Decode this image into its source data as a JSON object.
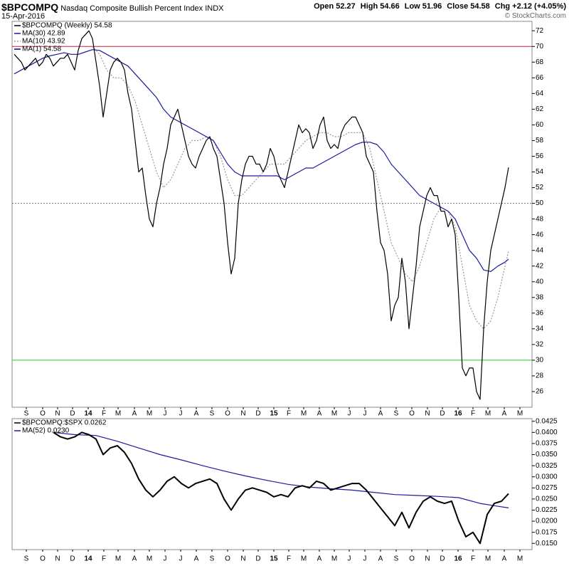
{
  "chart_data": {
    "type": "line",
    "symbol": "$BPCOMPQ",
    "title": "Nasdaq Composite Bullish Percent Index",
    "exchange": "INDX",
    "date": "15-Apr-2016",
    "quote": [
      {
        "label": "Open",
        "value": 52.27
      },
      {
        "label": "High",
        "value": 54.66
      },
      {
        "label": "Low",
        "value": 51.96
      },
      {
        "label": "Close",
        "value": 54.58
      },
      {
        "label": "Chg",
        "value": "+2.12 (+4.05%)"
      }
    ],
    "watermark": "© StockCharts.com",
    "xlim": [
      -0.6,
      145.6
    ],
    "xticks": [
      {
        "value": 3.4,
        "label": "S"
      },
      {
        "value": 8,
        "label": "O"
      },
      {
        "value": 12.2,
        "label": "N"
      },
      {
        "value": 16.4,
        "label": "D"
      },
      {
        "value": 20.8,
        "label": "14",
        "bold": true
      },
      {
        "value": 25.2,
        "label": "F"
      },
      {
        "value": 29.2,
        "label": "M"
      },
      {
        "value": 33.8,
        "label": "A"
      },
      {
        "value": 38,
        "label": "M"
      },
      {
        "value": 42.4,
        "label": "J"
      },
      {
        "value": 46.8,
        "label": "J"
      },
      {
        "value": 51.2,
        "label": "A"
      },
      {
        "value": 55.6,
        "label": "S"
      },
      {
        "value": 60,
        "label": "O"
      },
      {
        "value": 64.4,
        "label": "N"
      },
      {
        "value": 68.6,
        "label": "D"
      },
      {
        "value": 73,
        "label": "15",
        "bold": true
      },
      {
        "value": 77.2,
        "label": "F"
      },
      {
        "value": 81.4,
        "label": "M"
      },
      {
        "value": 85.8,
        "label": "A"
      },
      {
        "value": 90,
        "label": "M"
      },
      {
        "value": 94.2,
        "label": "J"
      },
      {
        "value": 98.6,
        "label": "J"
      },
      {
        "value": 103,
        "label": "A"
      },
      {
        "value": 107.4,
        "label": "S"
      },
      {
        "value": 111.8,
        "label": "O"
      },
      {
        "value": 116.2,
        "label": "N"
      },
      {
        "value": 120.4,
        "label": "D"
      },
      {
        "value": 124.8,
        "label": "16",
        "bold": true
      },
      {
        "value": 129,
        "label": "F"
      },
      {
        "value": 133.2,
        "label": "M"
      },
      {
        "value": 137.8,
        "label": "A"
      },
      {
        "value": 142.2,
        "label": "M"
      }
    ],
    "panels": [
      {
        "ylim": [
          24,
          73.2
        ],
        "yticks": [
          26,
          28,
          30,
          32,
          34,
          36,
          38,
          40,
          42,
          44,
          46,
          48,
          50,
          52,
          54,
          56,
          58,
          60,
          62,
          64,
          66,
          68,
          70,
          72
        ],
        "hlines": [
          {
            "value": 70,
            "color": "#b0204a",
            "style": "solid"
          },
          {
            "value": 50,
            "color": "#777777",
            "style": "dotted"
          },
          {
            "value": 30,
            "color": "#22cc22",
            "style": "solid"
          }
        ],
        "series": [
          {
            "name": "$BPCOMPQ (Weekly) 54.58",
            "color": "#000000",
            "style": "solid",
            "x": [
              0,
              1,
              2,
              3,
              4,
              5,
              6,
              7,
              8,
              9,
              10,
              11,
              12,
              13,
              14,
              15,
              16,
              17,
              18,
              19,
              20,
              21,
              22,
              23,
              24,
              25,
              26,
              27,
              28,
              29,
              30,
              31,
              32,
              33,
              34,
              35,
              36,
              37,
              38,
              39,
              40,
              41,
              42,
              43,
              44,
              45,
              46,
              47,
              48,
              49,
              50,
              51,
              52,
              53,
              54,
              55,
              56,
              57,
              58,
              59,
              60,
              61,
              62,
              63,
              64,
              65,
              66,
              67,
              68,
              69,
              70,
              71,
              72,
              73,
              74,
              75,
              76,
              77,
              78,
              79,
              80,
              81,
              82,
              83,
              84,
              85,
              86,
              87,
              88,
              89,
              90,
              91,
              92,
              93,
              94,
              95,
              96,
              97,
              98,
              99,
              100,
              101,
              102,
              103,
              104,
              105,
              106,
              107,
              108,
              109,
              110,
              111,
              112,
              113,
              114,
              115,
              116,
              117,
              118,
              119,
              120,
              121,
              122,
              123,
              124,
              125,
              126,
              127,
              128,
              129,
              130,
              131,
              132,
              133,
              134,
              135,
              136,
              137,
              138,
              139
            ],
            "values": [
              69,
              68.5,
              68,
              67,
              67.5,
              68,
              68.5,
              67.5,
              68,
              69,
              68.5,
              67.5,
              68,
              68.5,
              68.5,
              69,
              68,
              67,
              69.5,
              71,
              71.5,
              72,
              71,
              68,
              65,
              61,
              64,
              67,
              68,
              68.5,
              68,
              67,
              64,
              62,
              58,
              54,
              54.5,
              51,
              48,
              47,
              50,
              52,
              55,
              57,
              60,
              61,
              62,
              60,
              58,
              56,
              55,
              54.5,
              56,
              57,
              58,
              58.5,
              57,
              56,
              53,
              50,
              45,
              41,
              43,
              50,
              53,
              55,
              56,
              56,
              55,
              55,
              54,
              55,
              57,
              56,
              54,
              53,
              52,
              54,
              56,
              58,
              60,
              59,
              59.5,
              59,
              57,
              58,
              60,
              61,
              58,
              57,
              57.5,
              57,
              59,
              60,
              60.5,
              61,
              61,
              60,
              59,
              56,
              55,
              54,
              49,
              45,
              44,
              41,
              35,
              37,
              38,
              43,
              40,
              34,
              38,
              42,
              47,
              49,
              51,
              52,
              51,
              51,
              49,
              49,
              47,
              48,
              46,
              38,
              29,
              28,
              29,
              29,
              26,
              25,
              34,
              40,
              44,
              46,
              48,
              50,
              52,
              54.58
            ]
          },
          {
            "name": "MA(30) 42.89",
            "color": "#1a1aa0",
            "style": "solid",
            "x": [
              0,
              2,
              4,
              6,
              8,
              10,
              12,
              14,
              16,
              18,
              20,
              22,
              24,
              26,
              28,
              30,
              32,
              34,
              36,
              38,
              40,
              42,
              44,
              46,
              48,
              50,
              52,
              54,
              56,
              58,
              60,
              62,
              64,
              66,
              68,
              70,
              72,
              74,
              76,
              78,
              80,
              82,
              84,
              86,
              88,
              90,
              92,
              94,
              96,
              98,
              100,
              102,
              104,
              106,
              108,
              110,
              112,
              114,
              116,
              118,
              120,
              122,
              124,
              126,
              128,
              130,
              132,
              134,
              136,
              138,
              139
            ],
            "values": [
              66.5,
              67,
              67.5,
              68,
              68.5,
              68.8,
              69,
              69.2,
              69,
              69,
              69.3,
              69.6,
              69.5,
              69,
              68.5,
              68,
              67.5,
              66.5,
              65.5,
              64.5,
              63.5,
              62,
              61,
              60.5,
              60,
              59.5,
              59,
              58.5,
              58,
              56.5,
              55,
              54,
              53.5,
              53.5,
              53.5,
              53.5,
              53.5,
              53.5,
              53,
              53.5,
              54,
              54.5,
              54.5,
              55,
              55.5,
              56,
              56.5,
              57,
              57.5,
              57.8,
              57.8,
              57.5,
              56.5,
              55,
              54,
              53,
              52,
              51,
              50.5,
              50,
              49.5,
              49,
              48,
              46,
              44,
              43,
              41.5,
              41.3,
              42,
              42.5,
              42.89
            ]
          },
          {
            "name": "MA(10) 43.92",
            "color": "#999999",
            "style": "dotted",
            "x": [
              22,
              24,
              26,
              28,
              30,
              32,
              34,
              36,
              38,
              40,
              42,
              44,
              46,
              48,
              50,
              52,
              54,
              56,
              58,
              60,
              62,
              64,
              66,
              68,
              70,
              72,
              74,
              76,
              78,
              80,
              82,
              84,
              86,
              88,
              90,
              92,
              94,
              96,
              98,
              100,
              102,
              104,
              106,
              108,
              110,
              112,
              114,
              116,
              118,
              120,
              122,
              124,
              126,
              128,
              130,
              132,
              134,
              136,
              138,
              139
            ],
            "values": [
              70,
              69,
              67,
              66,
              66,
              65,
              63,
              60,
              57,
              54,
              52,
              53,
              55,
              57,
              58,
              58,
              58.5,
              58,
              56,
              53,
              51,
              51,
              52,
              53,
              54,
              55,
              55,
              55,
              56,
              57,
              58,
              58.5,
              59,
              59,
              58.5,
              58.5,
              59,
              59,
              59,
              57,
              53,
              49,
              45,
              43,
              41,
              40,
              42,
              45,
              48,
              49.5,
              49,
              47,
              42,
              37,
              35,
              34,
              35,
              38,
              42,
              43.92
            ]
          }
        ],
        "legend_notes": [
          {
            "text": "MA(1) 54.58",
            "color": "#000080"
          }
        ]
      },
      {
        "ylim": [
          0.0136,
          0.0431
        ],
        "yticks": [
          0.0425,
          {
            "value": 0.04,
            "label": "0.0400"
          },
          0.0375,
          {
            "value": 0.035,
            "label": "0.0350"
          },
          0.0325,
          {
            "value": 0.03,
            "label": "0.0300"
          },
          0.0275,
          {
            "value": 0.025,
            "label": "0.0250"
          },
          0.0225,
          {
            "value": 0.02,
            "label": "0.0200"
          },
          0.0175,
          {
            "value": 0.015,
            "label": "0.0150"
          }
        ],
        "hlines": [],
        "series": [
          {
            "name": "$BPCOMPQ:$SPX 0.0262",
            "color": "#000000",
            "style": "solid",
            "width": 2,
            "x": [
              11,
              13,
              15,
              17,
              19,
              21,
              23,
              25,
              27,
              29,
              31,
              33,
              35,
              37,
              39,
              41,
              43,
              45,
              47,
              49,
              51,
              53,
              55,
              57,
              59,
              61,
              63,
              65,
              67,
              69,
              71,
              73,
              75,
              77,
              79,
              81,
              83,
              85,
              87,
              89,
              91,
              93,
              95,
              97,
              99,
              101,
              103,
              105,
              107,
              109,
              111,
              113,
              115,
              117,
              119,
              121,
              123,
              125,
              127,
              129,
              131,
              133,
              135,
              137,
              139
            ],
            "values": [
              0.04,
              0.039,
              0.0385,
              0.039,
              0.04,
              0.0395,
              0.0385,
              0.035,
              0.0365,
              0.037,
              0.0355,
              0.033,
              0.0295,
              0.027,
              0.0255,
              0.027,
              0.029,
              0.03,
              0.0285,
              0.0275,
              0.0285,
              0.029,
              0.0295,
              0.0285,
              0.025,
              0.0225,
              0.025,
              0.027,
              0.0275,
              0.027,
              0.0265,
              0.0255,
              0.026,
              0.0255,
              0.0275,
              0.028,
              0.0275,
              0.029,
              0.0285,
              0.027,
              0.0275,
              0.028,
              0.0285,
              0.0285,
              0.027,
              0.025,
              0.023,
              0.021,
              0.019,
              0.022,
              0.0185,
              0.022,
              0.0245,
              0.0255,
              0.0245,
              0.024,
              0.0245,
              0.02,
              0.0165,
              0.0175,
              0.015,
              0.0215,
              0.024,
              0.0245,
              0.0262
            ]
          },
          {
            "name": "MA(52) 0.0230",
            "color": "#1a1aa0",
            "style": "solid",
            "x": [
              11,
              17,
              23,
              29,
              35,
              41,
              47,
              53,
              59,
              65,
              71,
              77,
              83,
              89,
              95,
              101,
              107,
              113,
              119,
              125,
              131,
              135,
              139
            ],
            "values": [
              0.04,
              0.0395,
              0.0393,
              0.038,
              0.0365,
              0.035,
              0.0338,
              0.0325,
              0.0313,
              0.0302,
              0.0292,
              0.0283,
              0.0277,
              0.0273,
              0.027,
              0.0265,
              0.026,
              0.0258,
              0.0256,
              0.0253,
              0.024,
              0.0235,
              0.023
            ]
          }
        ],
        "legend_notes": []
      }
    ]
  }
}
